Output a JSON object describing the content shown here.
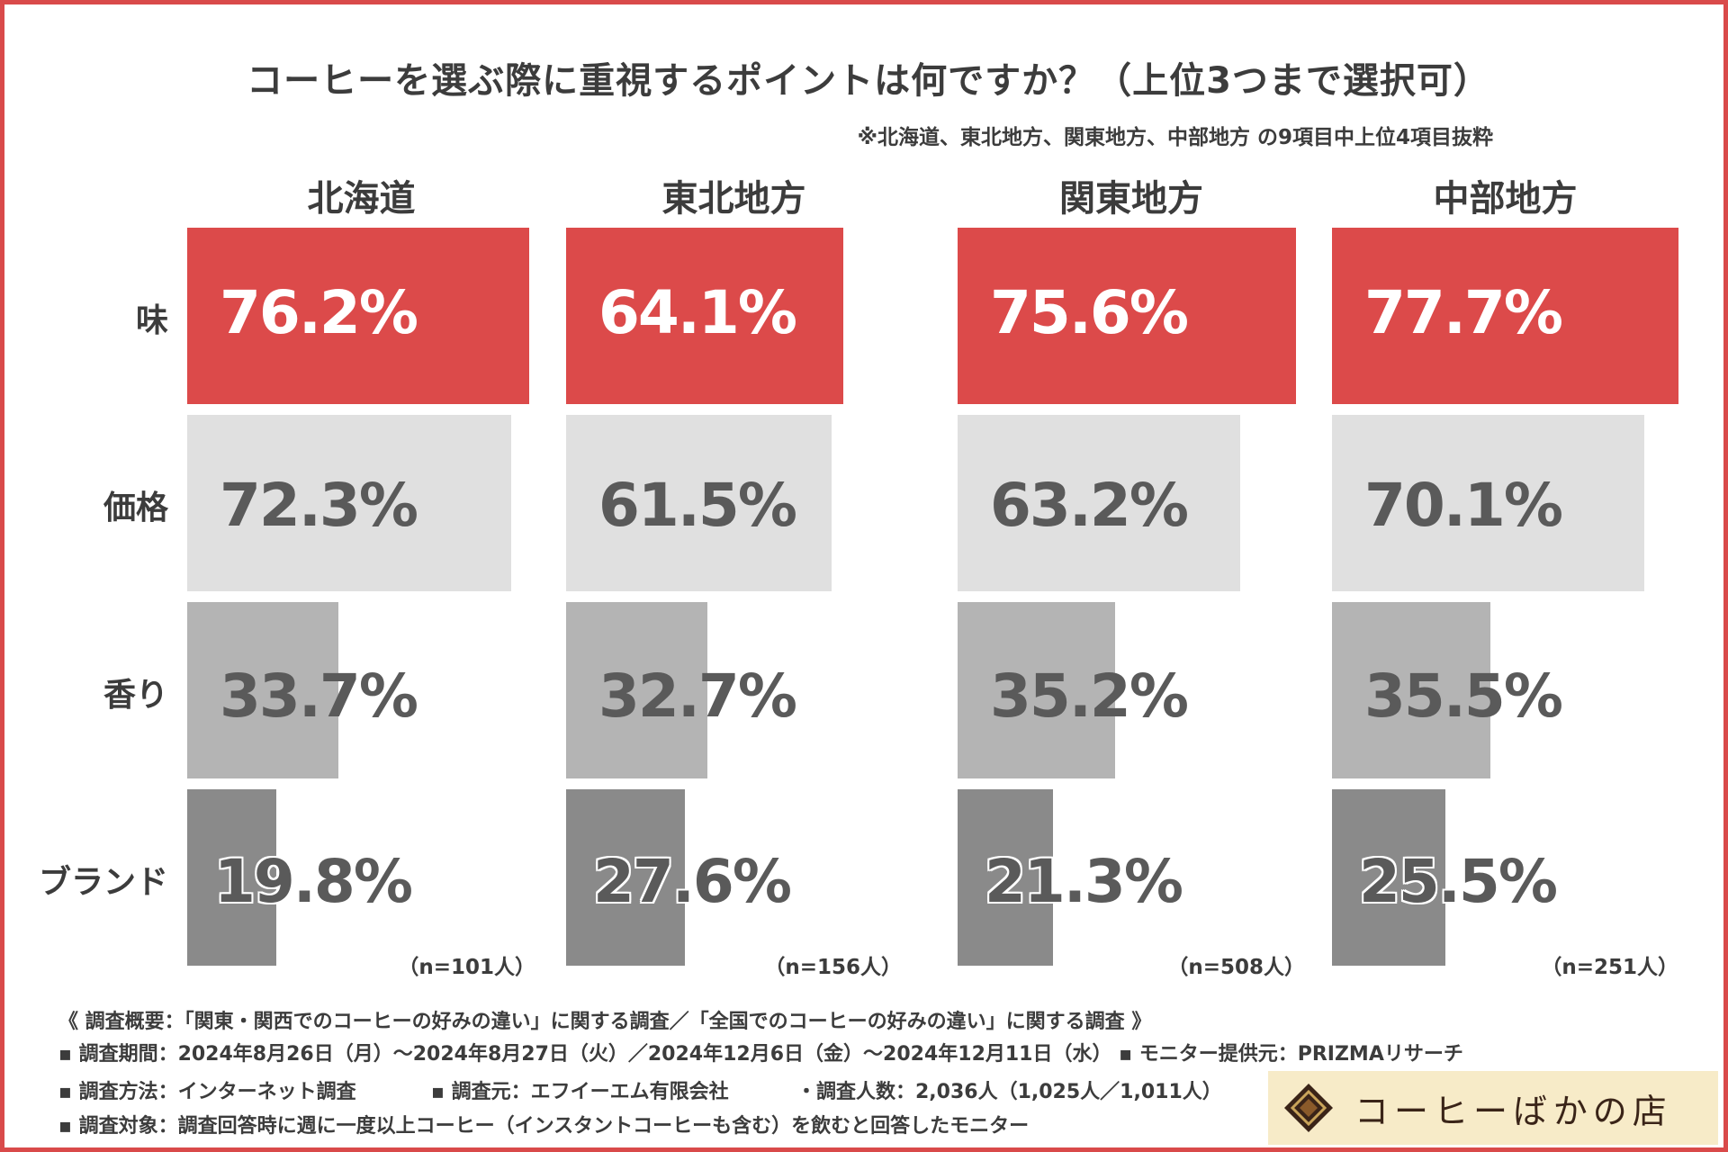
{
  "title": "コーヒーを選ぶ際に重視するポイントは何ですか？（上位3つまで選択可）",
  "note": "※北海道、東北地方、関東地方、中部地方 の9項目中上位4項目抜粋",
  "colors": {
    "frame": "#d94a4a",
    "taste": "#dc4a4a",
    "price": "#e0e0e0",
    "aroma": "#b4b4b4",
    "brand": "#8a8a8a"
  },
  "chart_data": {
    "type": "bar",
    "orientation": "horizontal",
    "categories": [
      "味",
      "価格",
      "香り",
      "ブランド"
    ],
    "series": [
      {
        "name": "北海道",
        "values": [
          76.2,
          72.3,
          33.7,
          19.8
        ],
        "labels": [
          "76.2%",
          "72.3%",
          "33.7%",
          "19.8%"
        ],
        "n_label": "（n=101人）"
      },
      {
        "name": "東北地方",
        "values": [
          64.1,
          61.5,
          32.7,
          27.6
        ],
        "labels": [
          "64.1%",
          "61.5%",
          "32.7%",
          "27.6%"
        ],
        "n_label": "（n=156人）"
      },
      {
        "name": "関東地方",
        "values": [
          75.6,
          63.2,
          35.2,
          21.3
        ],
        "labels": [
          "75.6%",
          "63.2%",
          "35.2%",
          "21.3%"
        ],
        "n_label": "（n=508人）"
      },
      {
        "name": "中部地方",
        "values": [
          77.7,
          70.1,
          35.5,
          25.5
        ],
        "labels": [
          "77.7%",
          "70.1%",
          "35.5%",
          "25.5%"
        ],
        "n_label": "（n=251人）"
      }
    ],
    "unit": "%",
    "grid": false,
    "legend": "none"
  },
  "footer": {
    "line1": "《 調査概要：「関東・関西でのコーヒーの好みの違い」に関する調査／「全国でのコーヒーの好みの違い」に関する調査 》",
    "line2": "▪ 調査期間：2024年8月26日（月）～2024年8月27日（火）／2024年12月6日（金）～2024年12月11日（水） ▪ モニター提供元：PRIZMAリサーチ",
    "line3a": "▪ 調査方法：インターネット調査",
    "line3b": "▪ 調査元：エフイーエム有限会社",
    "line3c": "・調査人数：2,036人（1,025人／1,011人）",
    "line4": "▪ 調査対象：調査回答時に週に一度以上コーヒー（インスタントコーヒーも含む）を飲むと回答したモニター"
  },
  "logo": {
    "text": "コーヒーばかの店",
    "icon": "diamond-logo-icon"
  }
}
